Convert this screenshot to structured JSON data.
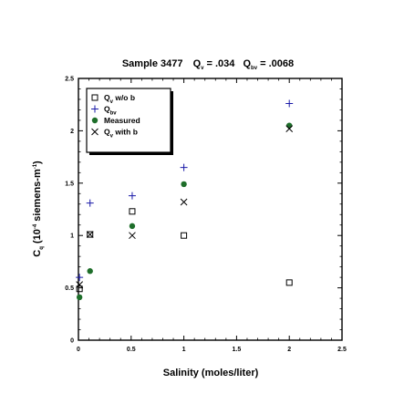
{
  "chart_data": {
    "type": "scatter",
    "title": {
      "prefix": "Sample 3477",
      "qv_symbol": "Q",
      "qv_sub": "v",
      "qv_value": " = .034",
      "qbv_symbol": "Q",
      "qbv_sub": "bv",
      "qbv_value": " = .0068"
    },
    "xlabel": "Salinity (moles/liter)",
    "ylabel": {
      "main": "C",
      "main_sub": "q",
      "units_pre": " (10",
      "units_exp": "-4",
      "units_mid": " siemens-m",
      "units_exp2": "-1",
      "units_post": ")"
    },
    "xlim": [
      0,
      2.5
    ],
    "ylim": [
      0,
      2.5
    ],
    "xticks": [
      "0",
      "0.5",
      "1",
      "1.5",
      "2",
      "2.5"
    ],
    "yticks": [
      "0",
      "0.5",
      "1",
      "1.5",
      "2",
      "2.5"
    ],
    "legend_position": "top-left",
    "series": [
      {
        "key": "qv_wob",
        "marker": "square",
        "color": "#000000",
        "legend": {
          "sym": "Q",
          "sub": "v",
          "rest": " w/o b"
        },
        "points": [
          [
            0.01,
            0.49
          ],
          [
            0.11,
            1.01
          ],
          [
            0.51,
            1.23
          ],
          [
            1.0,
            1.0
          ],
          [
            2.0,
            0.55
          ]
        ]
      },
      {
        "key": "qbv",
        "marker": "plus",
        "color": "#1a1aa8",
        "legend": {
          "sym": "Q",
          "sub": "bv",
          "rest": ""
        },
        "points": [
          [
            0.01,
            0.6
          ],
          [
            0.11,
            1.31
          ],
          [
            0.51,
            1.38
          ],
          [
            1.0,
            1.65
          ],
          [
            2.0,
            2.26
          ]
        ]
      },
      {
        "key": "measured",
        "marker": "circle",
        "color": "#1e6e2a",
        "legend": {
          "sym": "Measured",
          "sub": "",
          "rest": ""
        },
        "points": [
          [
            0.01,
            0.41
          ],
          [
            0.11,
            0.66
          ],
          [
            0.51,
            1.09
          ],
          [
            1.0,
            1.49
          ],
          [
            2.0,
            2.05
          ]
        ]
      },
      {
        "key": "qv_withb",
        "marker": "x",
        "color": "#000000",
        "legend": {
          "sym": "Q",
          "sub": "v",
          "rest": " with b"
        },
        "points": [
          [
            0.01,
            0.53
          ],
          [
            0.11,
            1.01
          ],
          [
            0.51,
            1.0
          ],
          [
            1.0,
            1.32
          ],
          [
            2.0,
            2.02
          ]
        ]
      }
    ]
  }
}
